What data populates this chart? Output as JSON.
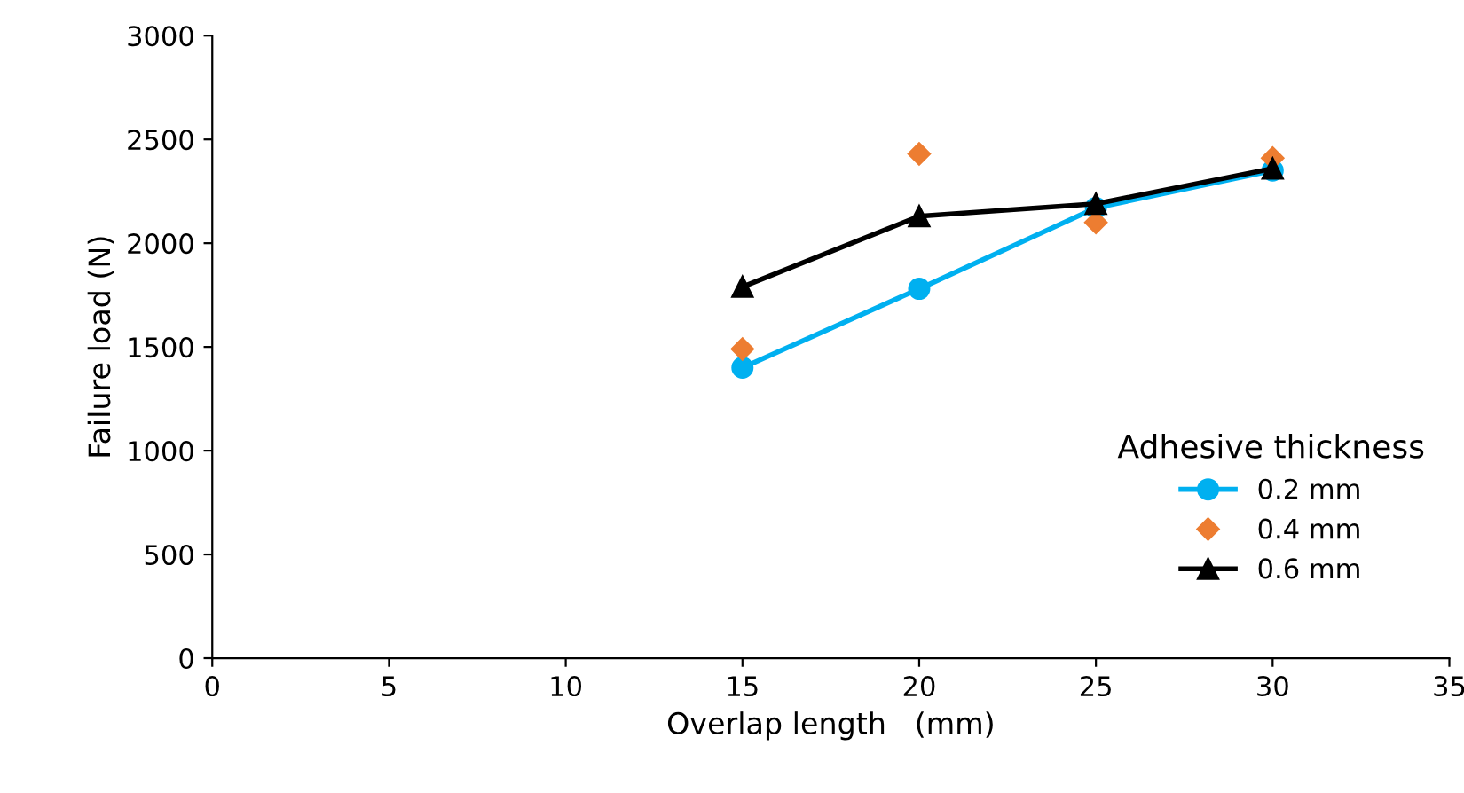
{
  "chart_data": {
    "type": "line",
    "xlabel": "Overlap length   (mm)",
    "ylabel": "Failure load (N)",
    "legend_title": "Adhesive thickness",
    "legend": "right",
    "x": [
      15,
      20,
      25,
      30
    ],
    "xlim": [
      0,
      35
    ],
    "xticks": [
      0,
      5,
      10,
      15,
      20,
      25,
      30,
      35
    ],
    "ylim": [
      0,
      3000
    ],
    "yticks": [
      0,
      500,
      1000,
      1500,
      2000,
      2500,
      3000
    ],
    "series": [
      {
        "name": "0.2 mm",
        "color": "#00b0f0",
        "marker": "circle",
        "values": [
          1400,
          1780,
          2170,
          2350
        ]
      },
      {
        "name": "0.4 mm",
        "type": "scatter",
        "color": "#ed7d31",
        "marker": "diamond",
        "values": [
          1490,
          2430,
          2100,
          2410
        ]
      },
      {
        "name": "0.6 mm",
        "color": "#000000",
        "marker": "triangle",
        "values": [
          1790,
          2130,
          2190,
          2360
        ]
      }
    ]
  }
}
